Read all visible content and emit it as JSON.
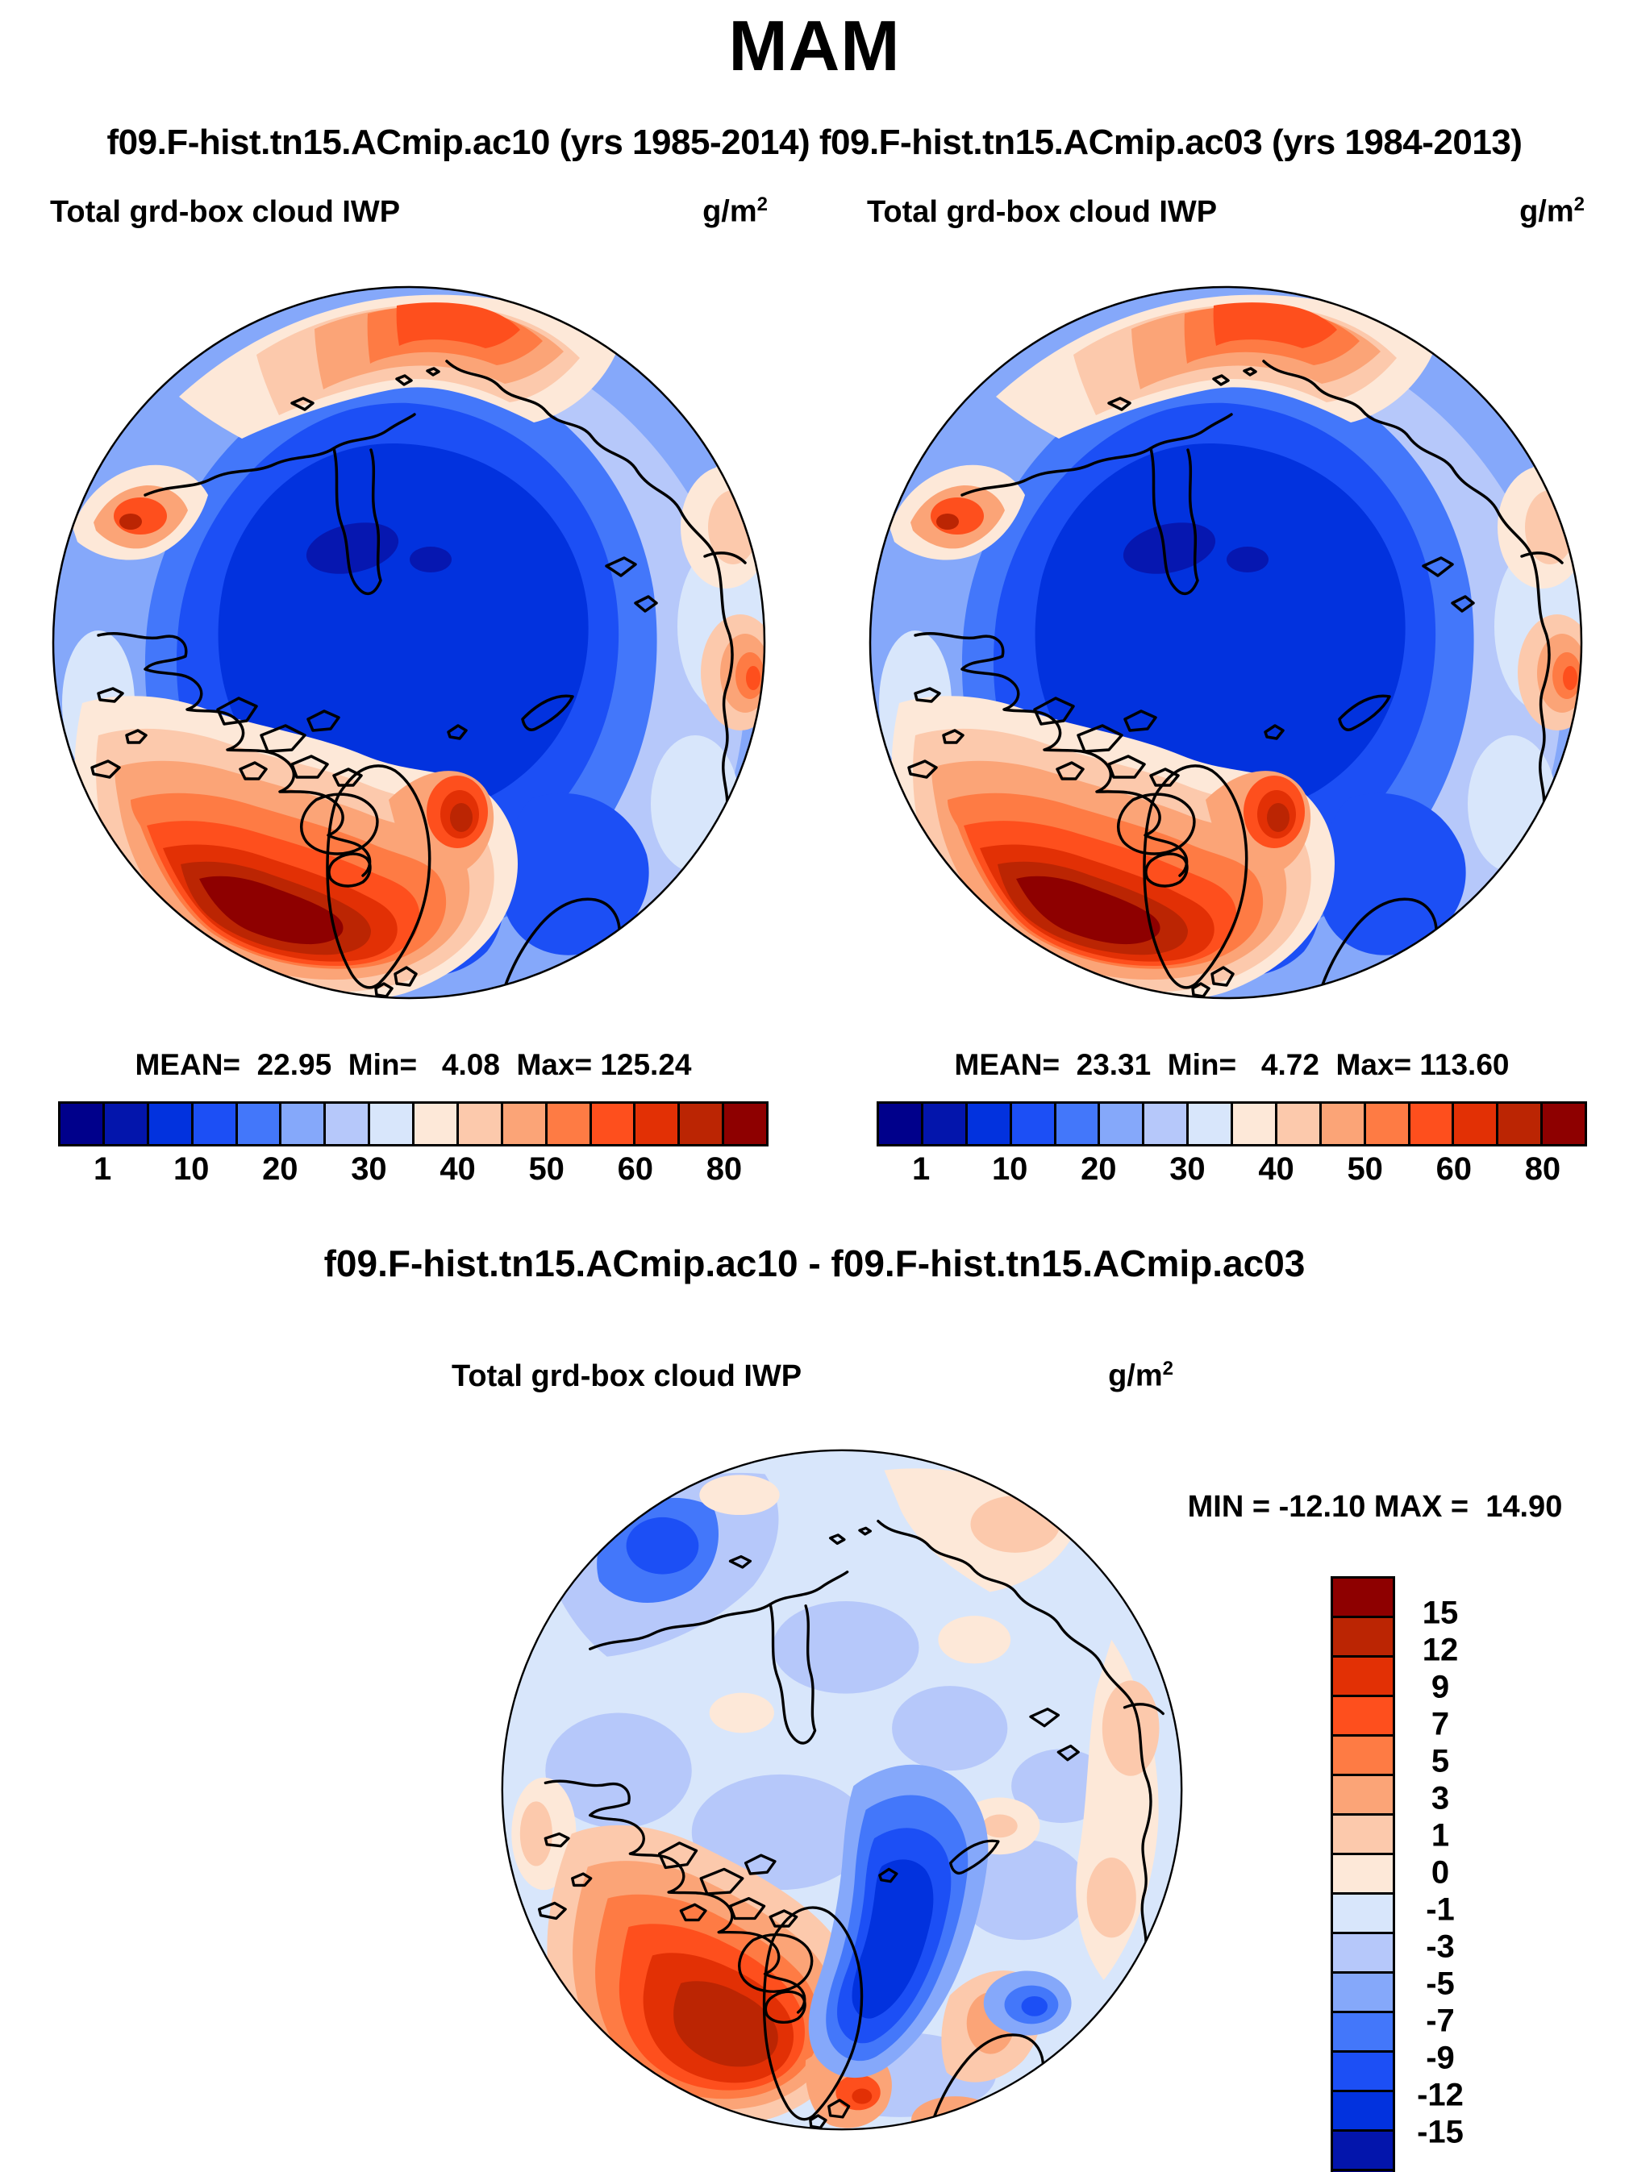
{
  "header": {
    "title": "MAM",
    "subtitle": "f09.F-hist.tn15.ACmip.ac10 (yrs 1985-2014) f09.F-hist.tn15.ACmip.ac03 (yrs 1984-2013)"
  },
  "panels": {
    "left": {
      "title": "Total grd-box cloud IWP",
      "units": "g/m",
      "units_exp": "2",
      "stats": "MEAN=  22.95  Min=   4.08  Max= 125.24"
    },
    "right": {
      "title": "Total grd-box cloud IWP",
      "units": "g/m",
      "units_exp": "2",
      "stats": "MEAN=  23.31  Min=   4.72  Max= 113.60"
    },
    "diff": {
      "heading": "f09.F-hist.tn15.ACmip.ac10 - f09.F-hist.tn15.ACmip.ac03",
      "title": "Total grd-box cloud IWP",
      "units": "g/m",
      "units_exp": "2",
      "minmax": "MIN = -12.10 MAX =  14.90"
    }
  },
  "colorbar": {
    "segments": 16,
    "colors": [
      "#00008B",
      "#0315AC",
      "#0232DE",
      "#1C4FF5",
      "#4377FA",
      "#85A8FA",
      "#B6C8FA",
      "#D8E6FB",
      "#FDE8D8",
      "#FCC9AC",
      "#FBA477",
      "#FE7B44",
      "#FE4F1D",
      "#E23005",
      "#BB2503",
      "#8E0000"
    ],
    "tick_labels": [
      "1",
      "10",
      "20",
      "30",
      "40",
      "50",
      "60",
      "80"
    ],
    "tick_positions": [
      1,
      3,
      5,
      7,
      9,
      11,
      13,
      15
    ]
  },
  "diff_colorbar": {
    "segments": 16,
    "colors": [
      "#8E0000",
      "#BB2503",
      "#E23005",
      "#FE4F1D",
      "#FE7B44",
      "#FBA477",
      "#FCC9AC",
      "#FDE8D8",
      "#D8E6FB",
      "#B6C8FA",
      "#85A8FA",
      "#4377FA",
      "#1C4FF5",
      "#0232DE",
      "#0315AC",
      "#00008B"
    ],
    "tick_labels": [
      "15",
      "12",
      "9",
      "7",
      "5",
      "3",
      "1",
      "0",
      "-1",
      "-3",
      "-5",
      "-7",
      "-9",
      "-12",
      "-15"
    ],
    "tick_positions": [
      1,
      2,
      3,
      4,
      5,
      6,
      7,
      8,
      9,
      10,
      11,
      12,
      13,
      14,
      15
    ]
  },
  "chart_data": [
    {
      "type": "heatmap",
      "subtype": "filled-contour-polar-map",
      "projection": "north-polar-stereographic",
      "season": "MAM",
      "model": "f09.F-hist.tn15.ACmip.ac10",
      "period": "yrs 1985-2014",
      "title": "Total grd-box cloud IWP",
      "units": "g/m2",
      "stats": {
        "mean": 22.95,
        "min": 4.08,
        "max": 125.24
      },
      "colorbar_tick_labels": [
        1,
        10,
        20,
        30,
        40,
        50,
        60,
        80
      ],
      "n_color_segments": 16,
      "palette": [
        "#00008B",
        "#0315AC",
        "#0232DE",
        "#1C4FF5",
        "#4377FA",
        "#85A8FA",
        "#B6C8FA",
        "#D8E6FB",
        "#FDE8D8",
        "#FCC9AC",
        "#FBA477",
        "#FE7B44",
        "#FE4F1D",
        "#E23005",
        "#BB2503",
        "#8E0000"
      ],
      "legend_position": "bottom"
    },
    {
      "type": "heatmap",
      "subtype": "filled-contour-polar-map",
      "projection": "north-polar-stereographic",
      "season": "MAM",
      "model": "f09.F-hist.tn15.ACmip.ac03",
      "period": "yrs 1984-2013",
      "title": "Total grd-box cloud IWP",
      "units": "g/m2",
      "stats": {
        "mean": 23.31,
        "min": 4.72,
        "max": 113.6
      },
      "colorbar_tick_labels": [
        1,
        10,
        20,
        30,
        40,
        50,
        60,
        80
      ],
      "n_color_segments": 16,
      "palette": [
        "#00008B",
        "#0315AC",
        "#0232DE",
        "#1C4FF5",
        "#4377FA",
        "#85A8FA",
        "#B6C8FA",
        "#D8E6FB",
        "#FDE8D8",
        "#FCC9AC",
        "#FBA477",
        "#FE7B44",
        "#FE4F1D",
        "#E23005",
        "#BB2503",
        "#8E0000"
      ],
      "legend_position": "bottom"
    },
    {
      "type": "heatmap",
      "subtype": "filled-contour-polar-map-difference",
      "projection": "north-polar-stereographic",
      "season": "MAM",
      "expression": "f09.F-hist.tn15.ACmip.ac10 - f09.F-hist.tn15.ACmip.ac03",
      "title": "Total grd-box cloud IWP",
      "units": "g/m2",
      "stats": {
        "min": -12.1,
        "max": 14.9
      },
      "colorbar_tick_labels": [
        15,
        12,
        9,
        7,
        5,
        3,
        1,
        0,
        -1,
        -3,
        -5,
        -7,
        -9,
        -12,
        -15
      ],
      "n_color_segments": 16,
      "palette": [
        "#8E0000",
        "#BB2503",
        "#E23005",
        "#FE4F1D",
        "#FE7B44",
        "#FBA477",
        "#FCC9AC",
        "#FDE8D8",
        "#D8E6FB",
        "#B6C8FA",
        "#85A8FA",
        "#4377FA",
        "#1C4FF5",
        "#0232DE",
        "#0315AC",
        "#00008B"
      ],
      "legend_position": "right"
    }
  ]
}
